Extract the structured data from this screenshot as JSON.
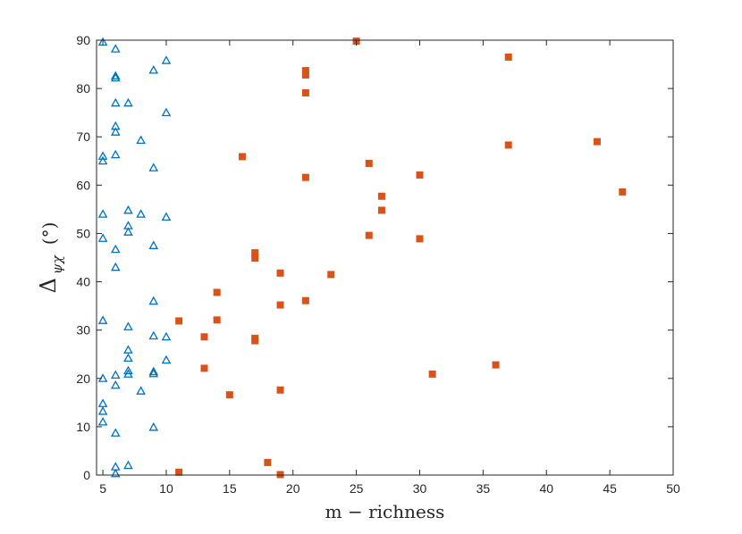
{
  "chart_data": {
    "type": "scatter",
    "title": "",
    "xlabel": "m − richness",
    "ylabel": {
      "main": "Δ",
      "subscript": "ψχ",
      "rest": "(°)"
    },
    "xlim": [
      4.5,
      50
    ],
    "ylim": [
      0,
      90
    ],
    "xticks": [
      5,
      10,
      15,
      20,
      25,
      30,
      35,
      40,
      45,
      50
    ],
    "yticks": [
      0,
      10,
      20,
      30,
      40,
      50,
      60,
      70,
      80,
      90
    ],
    "grid": false,
    "legend": null,
    "series": [
      {
        "marker": "triangle-open",
        "color": "#0072BD",
        "points": [
          [
            5,
            89.6
          ],
          [
            5,
            66
          ],
          [
            5,
            65
          ],
          [
            5,
            54
          ],
          [
            5,
            49
          ],
          [
            5,
            32
          ],
          [
            5,
            20
          ],
          [
            5,
            14.8
          ],
          [
            5,
            13.2
          ],
          [
            5,
            11
          ],
          [
            6,
            88.2
          ],
          [
            6,
            82.6
          ],
          [
            6,
            82.2
          ],
          [
            6,
            77
          ],
          [
            6,
            72.2
          ],
          [
            6,
            71
          ],
          [
            6,
            66.3
          ],
          [
            6,
            46.7
          ],
          [
            6,
            43
          ],
          [
            6,
            20.7
          ],
          [
            6,
            18.6
          ],
          [
            6,
            8.7
          ],
          [
            6,
            1.7
          ],
          [
            6,
            0.3
          ],
          [
            7,
            77
          ],
          [
            7,
            54.8
          ],
          [
            7,
            51.6
          ],
          [
            7,
            50.3
          ],
          [
            7,
            30.7
          ],
          [
            7,
            25.9
          ],
          [
            7,
            24.2
          ],
          [
            7,
            21.6
          ],
          [
            7,
            20.9
          ],
          [
            7,
            2
          ],
          [
            8,
            69.3
          ],
          [
            8,
            54
          ],
          [
            8,
            17.4
          ],
          [
            9,
            83.8
          ],
          [
            9,
            63.6
          ],
          [
            9,
            47.5
          ],
          [
            9,
            36
          ],
          [
            9,
            28.8
          ],
          [
            9,
            21.4
          ],
          [
            9,
            21
          ],
          [
            9,
            9.9
          ],
          [
            10,
            85.8
          ],
          [
            10,
            75
          ],
          [
            10,
            53.4
          ],
          [
            10,
            28.6
          ],
          [
            10,
            23.8
          ]
        ]
      },
      {
        "marker": "square-filled",
        "color": "#D95319",
        "points": [
          [
            11,
            31.9
          ],
          [
            11,
            0.6
          ],
          [
            13,
            28.6
          ],
          [
            13,
            22.1
          ],
          [
            14,
            37.8
          ],
          [
            14,
            32.1
          ],
          [
            15,
            16.6
          ],
          [
            16,
            65.9
          ],
          [
            17,
            46
          ],
          [
            17,
            44.9
          ],
          [
            17,
            28.3
          ],
          [
            17,
            27.8
          ],
          [
            18,
            2.6
          ],
          [
            19,
            41.8
          ],
          [
            19,
            35.2
          ],
          [
            19,
            17.6
          ],
          [
            19,
            0.1
          ],
          [
            21,
            83.7
          ],
          [
            21,
            82.8
          ],
          [
            21,
            79.1
          ],
          [
            21,
            61.6
          ],
          [
            21,
            36.1
          ],
          [
            23,
            41.5
          ],
          [
            25,
            89.8
          ],
          [
            26,
            64.5
          ],
          [
            26,
            49.6
          ],
          [
            27,
            57.7
          ],
          [
            27,
            54.8
          ],
          [
            30,
            62.1
          ],
          [
            30,
            48.9
          ],
          [
            31,
            20.9
          ],
          [
            36,
            22.8
          ],
          [
            37,
            86.5
          ],
          [
            37,
            68.3
          ],
          [
            44,
            69
          ],
          [
            46,
            58.6
          ]
        ]
      }
    ]
  }
}
